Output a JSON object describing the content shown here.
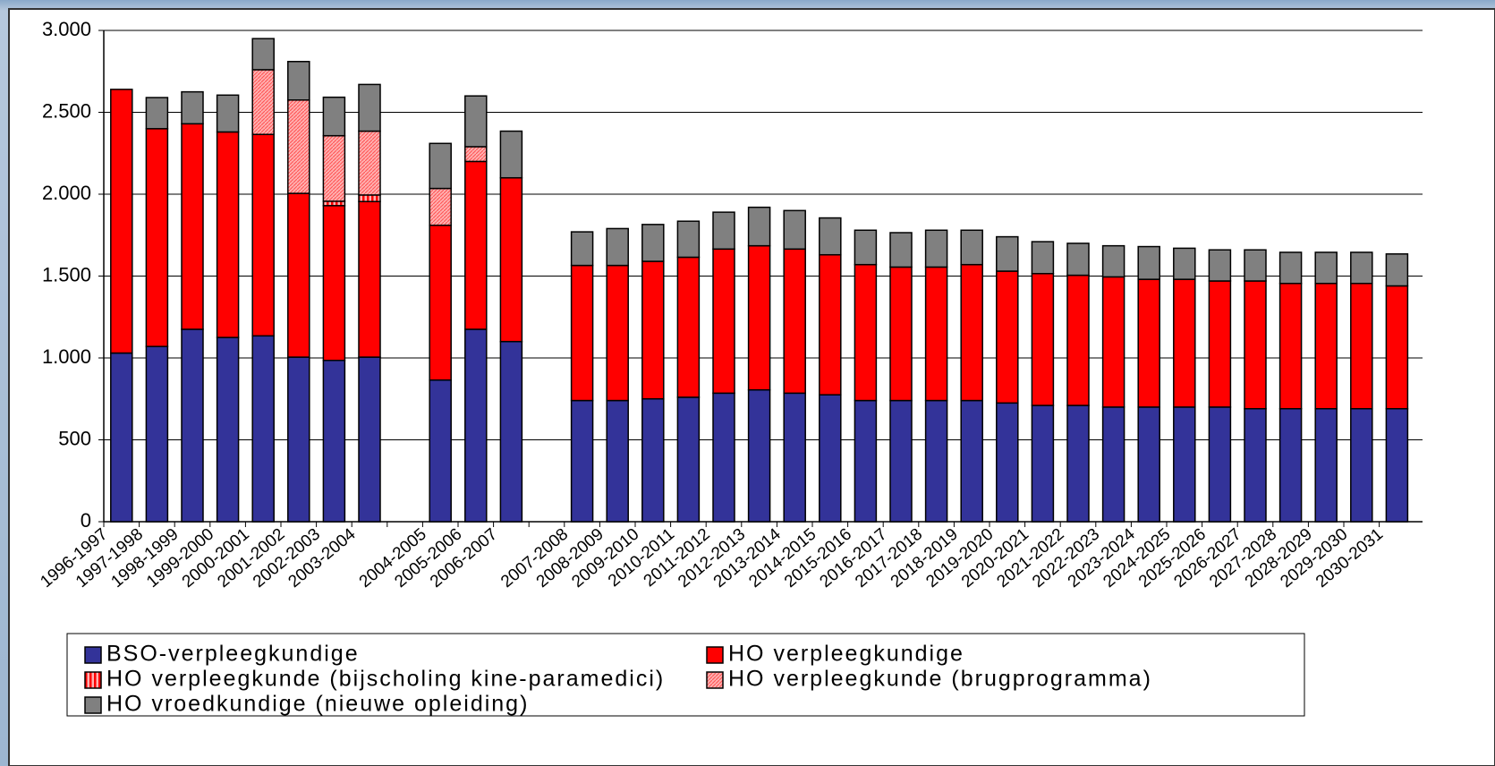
{
  "chart_data": {
    "type": "stacked_bar",
    "categories": [
      "1996-1997",
      "1997-1998",
      "1998-1999",
      "1999-2000",
      "2000-2001",
      "2001-2002",
      "2002-2003",
      "2003-2004",
      null,
      "2004-2005",
      "2005-2006",
      "2006-2007",
      null,
      "2007-2008",
      "2008-2009",
      "2009-2010",
      "2010-2011",
      "2011-2012",
      "2012-2013",
      "2013-2014",
      "2014-2015",
      "2015-2016",
      "2016-2017",
      "2017-2018",
      "2018-2019",
      "2019-2020",
      "2020-2021",
      "2021-2022",
      "2022-2023",
      "2023-2024",
      "2024-2025",
      "2025-2026",
      "2026-2027",
      "2027-2028",
      "2028-2029",
      "2029-2030",
      "2030-2031"
    ],
    "series": [
      {
        "name": "BSO-verpleegkundige",
        "color": "#333399",
        "values": [
          1030,
          1070,
          1175,
          1125,
          1135,
          1005,
          985,
          1005,
          null,
          865,
          1175,
          1100,
          null,
          740,
          740,
          750,
          760,
          785,
          805,
          785,
          775,
          740,
          740,
          740,
          740,
          725,
          710,
          710,
          700,
          700,
          700,
          700,
          690,
          690,
          690,
          690,
          690
        ]
      },
      {
        "name": "HO verpleegkundige",
        "color": "#ff0000",
        "values": [
          1610,
          1330,
          1255,
          1255,
          1230,
          1000,
          945,
          950,
          null,
          945,
          1025,
          1000,
          null,
          825,
          825,
          840,
          855,
          880,
          880,
          880,
          855,
          830,
          815,
          815,
          830,
          805,
          805,
          795,
          795,
          780,
          780,
          770,
          780,
          765,
          765,
          765,
          750
        ]
      },
      {
        "name": "HO verpleegkunde (bijscholing kine-paramedici)",
        "color": "#ff0000",
        "pattern": "stripes",
        "values": [
          null,
          null,
          null,
          null,
          null,
          null,
          27,
          40,
          null,
          null,
          null,
          null,
          null,
          null,
          null,
          null,
          null,
          null,
          null,
          null,
          null,
          null,
          null,
          null,
          null,
          null,
          null,
          null,
          null,
          null,
          null,
          null,
          null,
          null,
          null,
          null,
          null
        ]
      },
      {
        "name": "HO verpleegkunde (brugprogramma)",
        "color": "#ff9999",
        "pattern": "dots",
        "values": [
          null,
          null,
          null,
          null,
          395,
          570,
          400,
          390,
          null,
          225,
          90,
          null,
          null,
          null,
          null,
          null,
          null,
          null,
          null,
          null,
          null,
          null,
          null,
          null,
          null,
          null,
          null,
          null,
          null,
          null,
          null,
          null,
          null,
          null,
          null,
          null,
          null
        ]
      },
      {
        "name": "HO vroedkundige (nieuwe opleiding)",
        "color": "#808080",
        "values": [
          null,
          190,
          195,
          225,
          190,
          235,
          235,
          285,
          null,
          275,
          310,
          285,
          null,
          205,
          225,
          225,
          220,
          225,
          235,
          235,
          225,
          210,
          210,
          225,
          210,
          210,
          195,
          195,
          190,
          200,
          190,
          190,
          190,
          190,
          190,
          190,
          195
        ]
      }
    ],
    "ylim": [
      0,
      3000
    ],
    "yticks": [
      0,
      500,
      {
        "value": 1000,
        "label": "1.000"
      },
      {
        "value": 1500,
        "label": "1.500"
      },
      {
        "value": 2000,
        "label": "2.000"
      },
      {
        "value": 2500,
        "label": "2.500"
      },
      {
        "value": 3000,
        "label": "3.000"
      }
    ],
    "grid": true
  }
}
